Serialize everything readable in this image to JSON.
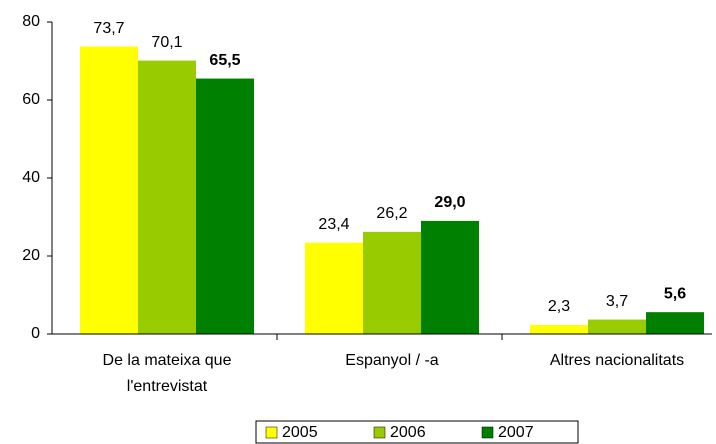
{
  "chart_data": {
    "type": "bar",
    "categories": [
      "De la mateixa que l'entrevistat",
      "Espanyol / -a",
      "Altres nacionalitats"
    ],
    "series": [
      {
        "name": "2005",
        "color": "#ffff00",
        "values": [
          73.7,
          23.4,
          2.3
        ],
        "value_labels": [
          "73,7",
          "23,4",
          "2,3"
        ]
      },
      {
        "name": "2006",
        "color": "#99cc00",
        "values": [
          70.1,
          26.2,
          3.7
        ],
        "value_labels": [
          "70,1",
          "26,2",
          "3,7"
        ]
      },
      {
        "name": "2007",
        "color": "#008000",
        "values": [
          65.5,
          29.0,
          5.6
        ],
        "value_labels": [
          "65,5",
          "29,0",
          "5,6"
        ]
      }
    ],
    "ylim": [
      0,
      80
    ],
    "yticks": [
      0,
      20,
      40,
      60,
      80
    ],
    "grid": false,
    "legend": "bottom"
  }
}
